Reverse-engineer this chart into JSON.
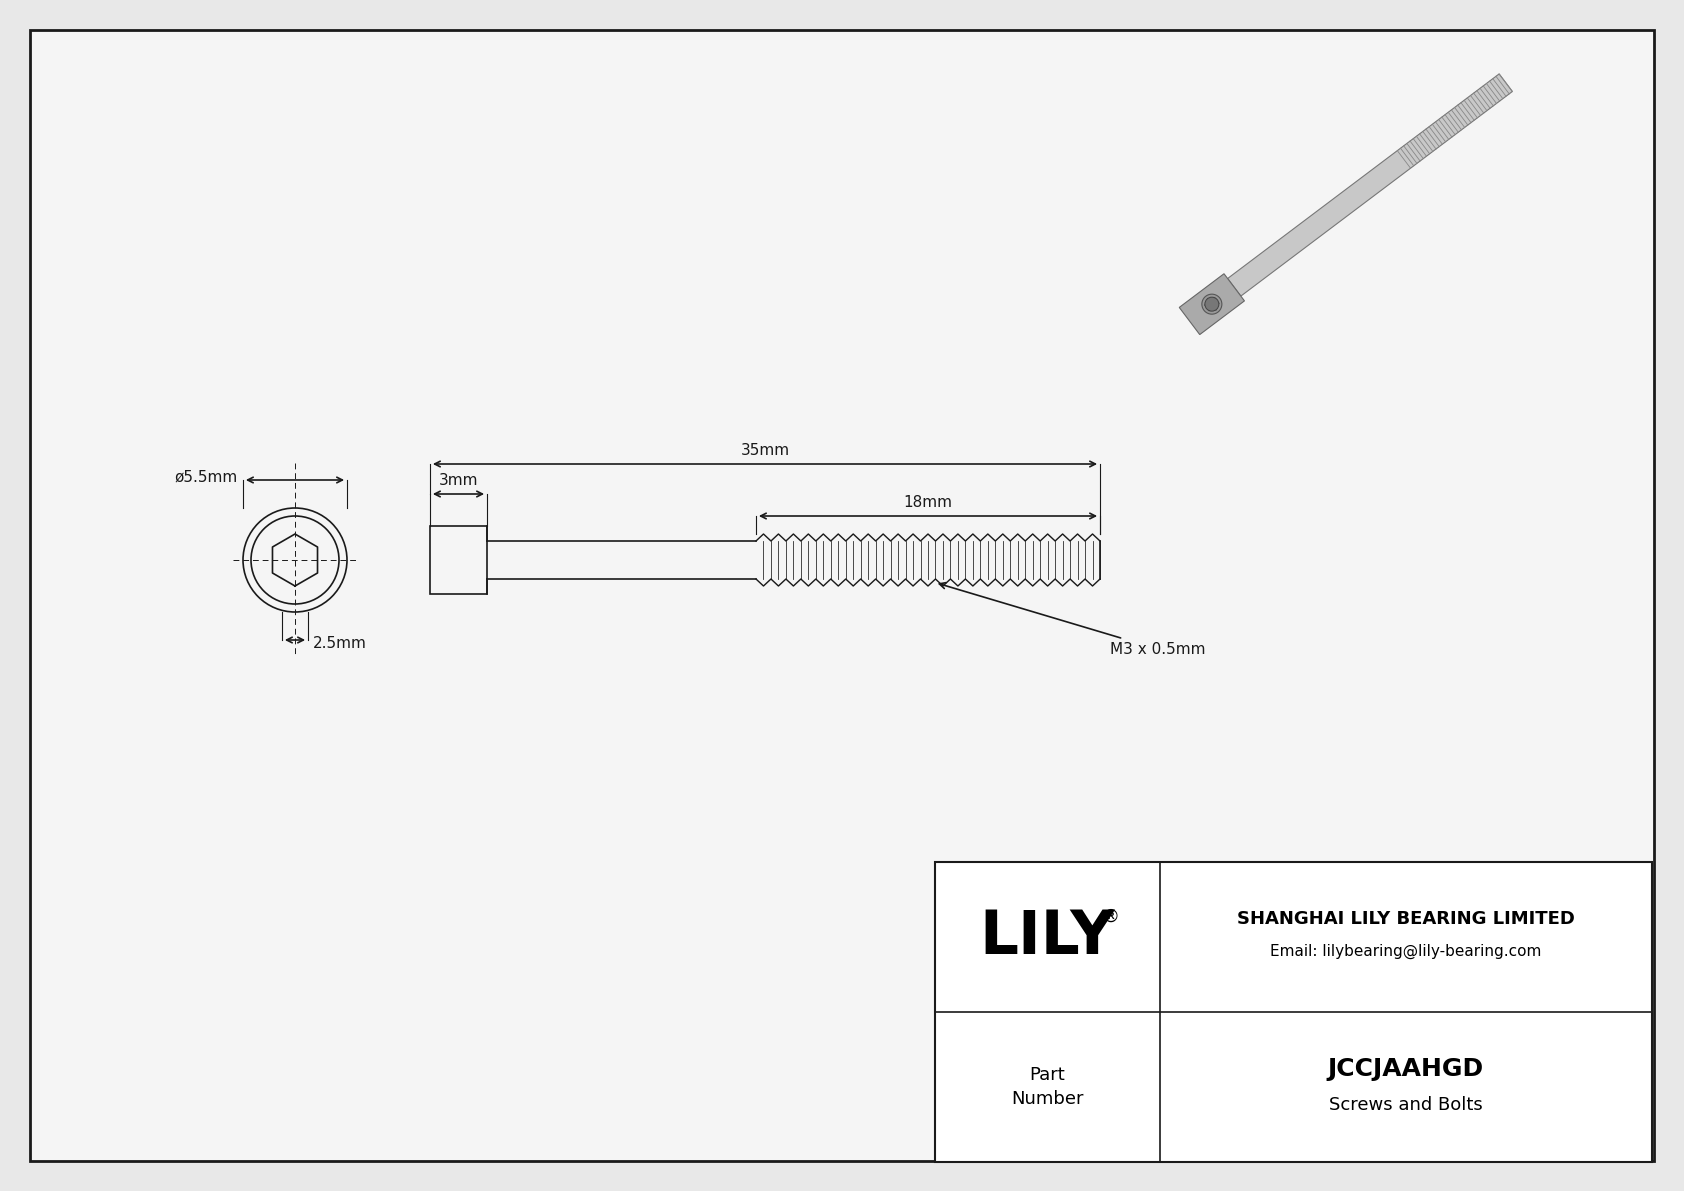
{
  "bg_color": "#e8e8e8",
  "drawing_bg": "#f5f5f5",
  "line_color": "#1a1a1a",
  "title_company": "SHANGHAI LILY BEARING LIMITED",
  "title_email": "Email: lilybearing@lily-bearing.com",
  "part_label": "Part\nNumber",
  "part_number": "JCCJAAHGD",
  "part_category": "Screws and Bolts",
  "brand": "LILY",
  "brand_reg": "®",
  "dim_diameter": "ø5.5mm",
  "dim_head_length": "3mm",
  "dim_total_length": "35mm",
  "dim_thread_length": "18mm",
  "dim_socket": "2.5mm",
  "dim_thread_spec": "M3 x 0.5mm"
}
